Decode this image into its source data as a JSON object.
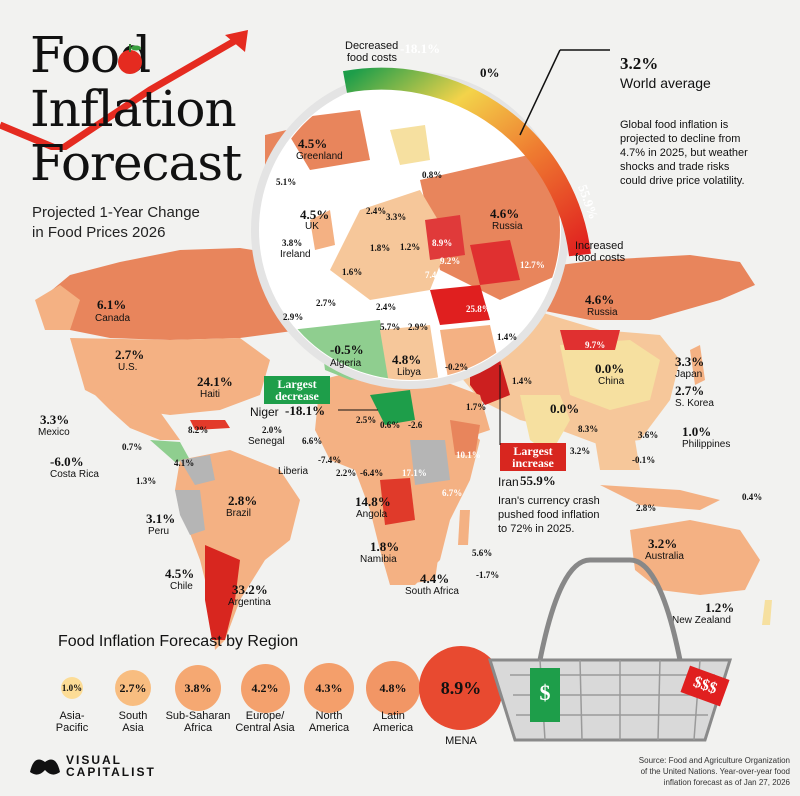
{
  "header": {
    "title_line1": "Food",
    "title_line2": "Inflation",
    "title_line3": "Forecast",
    "subtitle_line1": "Projected 1-Year Change",
    "subtitle_line2": "in Food Prices 2026"
  },
  "gauge": {
    "decreased_label_1": "Decreased",
    "decreased_label_2": "food costs",
    "decreased_value": "-18.1%",
    "zero_value": "0%",
    "increased_value": "55.9%",
    "increased_label_1": "Increased",
    "increased_label_2": "food costs",
    "world_value": "3.2%",
    "world_label": "World average",
    "note_1": "Global food inflation is",
    "note_2": "projected to decline from",
    "note_3": "4.7% in 2025, but weather",
    "note_4": "shocks and trade risks",
    "note_5": "could drive price volatility.",
    "colors": {
      "low": "#1e9e4a",
      "mid": "#f3d34a",
      "high": "#e01f1f"
    }
  },
  "callouts": {
    "largest_decrease_1": "Largest",
    "largest_decrease_2": "decrease",
    "largest_decrease_country": "Niger",
    "largest_decrease_value": "-18.1%",
    "largest_increase_1": "Largest",
    "largest_increase_2": "increase",
    "largest_increase_country": "Iran",
    "largest_increase_value": "55.9%",
    "iran_note_1": "Iran's currency crash",
    "iran_note_2": "pushed food inflation",
    "iran_note_3": "to 72% in 2025."
  },
  "countries": {
    "greenland": {
      "value": "4.5%",
      "name": "Greenland"
    },
    "iceland": {
      "value": "5.1%"
    },
    "uk": {
      "value": "4.5%",
      "name": "UK"
    },
    "ireland": {
      "value": "3.8%",
      "name": "Ireland"
    },
    "russia_zoom": {
      "value": "4.6%",
      "name": "Russia"
    },
    "russia": {
      "value": "4.6%",
      "name": "Russia"
    },
    "canada": {
      "value": "6.1%",
      "name": "Canada"
    },
    "us": {
      "value": "2.7%",
      "name": "U.S."
    },
    "mexico": {
      "value": "3.3%",
      "name": "Mexico"
    },
    "haiti": {
      "value": "24.1%",
      "name": "Haiti"
    },
    "costa_rica": {
      "value": "-6.0%",
      "name": "Costa Rica"
    },
    "algeria": {
      "value": "-0.5%",
      "name": "Algeria"
    },
    "libya": {
      "value": "4.8%",
      "name": "Libya"
    },
    "china": {
      "value": "0.0%",
      "name": "China"
    },
    "japan": {
      "value": "3.3%",
      "name": "Japan"
    },
    "s_korea": {
      "value": "2.7%",
      "name": "S. Korea"
    },
    "philippines": {
      "value": "1.0%",
      "name": "Philippines"
    },
    "india": {
      "value": "0.0%"
    },
    "senegal": {
      "value": "2.0%",
      "name": "Senegal"
    },
    "liberia": {
      "value": "-7.4%",
      "name": "Liberia"
    },
    "brazil": {
      "value": "2.8%",
      "name": "Brazil"
    },
    "peru": {
      "value": "3.1%",
      "name": "Peru"
    },
    "chile": {
      "value": "4.5%",
      "name": "Chile"
    },
    "argentina": {
      "value": "33.2%",
      "name": "Argentina"
    },
    "angola": {
      "value": "14.8%",
      "name": "Angola"
    },
    "namibia": {
      "value": "1.8%",
      "name": "Namibia"
    },
    "south_africa": {
      "value": "4.4%",
      "name": "South Africa"
    },
    "australia": {
      "value": "3.2%",
      "name": "Australia"
    },
    "new_zealand": {
      "value": "1.2%",
      "name": "New Zealand"
    }
  },
  "small_values": [
    "0.8%",
    "2.4%",
    "3.3%",
    "1.8%",
    "1.2%",
    "8.9%",
    "9.2%",
    "12.7%",
    "1.6%",
    "7.4%",
    "2.7%",
    "2.9%",
    "2.4%",
    "5.7%",
    "2.9%",
    "25.8%",
    "1.4%",
    "9.7%",
    "1.4%",
    "-0.2%",
    "1.7%",
    "8.3%",
    "3.2%",
    "3.6%",
    "-0.1%",
    "2.8%",
    "0.4%",
    "0.7%",
    "8.2%",
    "1.3%",
    "4.1%",
    "2.5%",
    "0.6%",
    "-2.6",
    "6.6%",
    "2.2%",
    "-6.4%",
    "17.1%",
    "10.1%",
    "6.7%",
    "5.6%",
    "-1.7%"
  ],
  "chart_data": {
    "type": "bar",
    "title": "Food Inflation Forecast by Region",
    "categories": [
      "Asia-Pacific",
      "South Asia",
      "Sub-Saharan Africa",
      "Europe/ Central Asia",
      "North America",
      "Latin America",
      "MENA"
    ],
    "values": [
      1.0,
      2.7,
      3.8,
      4.2,
      4.3,
      4.8,
      8.9
    ],
    "value_labels": [
      "1.0%",
      "2.7%",
      "3.8%",
      "4.2%",
      "4.3%",
      "4.8%",
      "8.9%"
    ],
    "label_lines": [
      [
        "Asia-",
        "Pacific"
      ],
      [
        "South",
        "Asia"
      ],
      [
        "Sub-Saharan",
        "Africa"
      ],
      [
        "Europe/",
        "Central Asia"
      ],
      [
        "North",
        "America"
      ],
      [
        "Latin",
        "America"
      ],
      [
        "MENA"
      ]
    ]
  },
  "basket": {
    "tag_left": "$",
    "tag_right": "$$$"
  },
  "footer": {
    "brand_1": "VISUAL",
    "brand_2": "CAPITALIST",
    "source_1": "Source: Food and Agriculture Organization",
    "source_2": "of the United Nations. Year-over-year food",
    "source_3": "inflation forecast as of Jan 27, 2026"
  }
}
